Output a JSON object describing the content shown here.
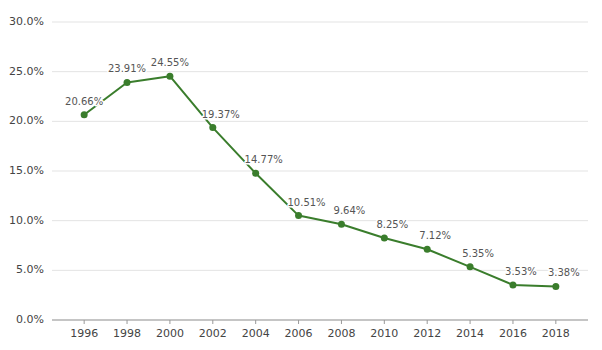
{
  "chart_data": {
    "type": "line",
    "x": [
      1996,
      1998,
      2000,
      2002,
      2004,
      2006,
      2008,
      2010,
      2012,
      2014,
      2016,
      2018
    ],
    "values": [
      20.66,
      23.91,
      24.55,
      19.37,
      14.77,
      10.51,
      9.64,
      8.25,
      7.12,
      5.35,
      3.53,
      3.38
    ],
    "value_labels": [
      "20.66%",
      "23.91%",
      "24.55%",
      "19.37%",
      "14.77%",
      "10.51%",
      "9.64%",
      "8.25%",
      "7.12%",
      "5.35%",
      "3.53%",
      "3.38%"
    ],
    "data_labels": true,
    "color": "#3a7d2c",
    "marker": "circle",
    "xlim": [
      1994.5,
      2019.5
    ],
    "xticks": [
      1996,
      1998,
      2000,
      2002,
      2004,
      2006,
      2008,
      2010,
      2012,
      2014,
      2016,
      2018
    ],
    "ylim": [
      0,
      30
    ],
    "yticks": [
      {
        "value": 0,
        "label": "0.0%"
      },
      {
        "value": 5,
        "label": "5.0%"
      },
      {
        "value": 10,
        "label": "10.0%"
      },
      {
        "value": 15,
        "label": "15.0%"
      },
      {
        "value": 20,
        "label": "20.0%"
      },
      {
        "value": 25,
        "label": "25.0%"
      },
      {
        "value": 30,
        "label": "30.0%"
      }
    ],
    "grid": true
  }
}
